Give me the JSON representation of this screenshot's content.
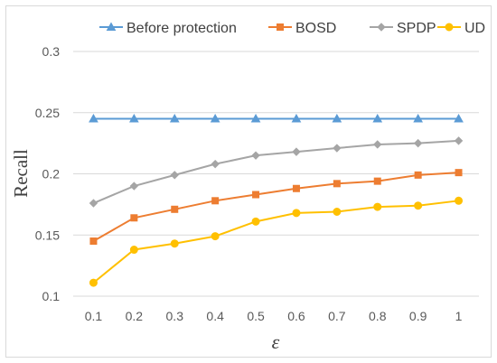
{
  "chart_data": {
    "type": "line",
    "x": [
      "0.1",
      "0.2",
      "0.3",
      "0.4",
      "0.5",
      "0.6",
      "0.7",
      "0.8",
      "0.9",
      "1"
    ],
    "series": [
      {
        "name": "Before protection",
        "color": "#5b9bd5",
        "marker": "triangle",
        "values": [
          0.245,
          0.245,
          0.245,
          0.245,
          0.245,
          0.245,
          0.245,
          0.245,
          0.245,
          0.245
        ]
      },
      {
        "name": "BOSD",
        "color": "#ed7d31",
        "marker": "square",
        "values": [
          0.145,
          0.164,
          0.171,
          0.178,
          0.183,
          0.188,
          0.192,
          0.194,
          0.199,
          0.201
        ]
      },
      {
        "name": "SPDP",
        "color": "#a5a5a5",
        "marker": "diamond",
        "values": [
          0.176,
          0.19,
          0.199,
          0.208,
          0.215,
          0.218,
          0.221,
          0.224,
          0.225,
          0.227
        ]
      },
      {
        "name": "UD",
        "color": "#ffc000",
        "marker": "circle",
        "values": [
          0.111,
          0.138,
          0.143,
          0.149,
          0.161,
          0.168,
          0.169,
          0.173,
          0.174,
          0.178
        ]
      }
    ],
    "xlabel": "ε",
    "ylabel": "Recall",
    "ylim": [
      0.1,
      0.3
    ],
    "yticks": [
      "0.1",
      "0.15",
      "0.2",
      "0.25",
      "0.3"
    ],
    "grid": true,
    "legend_position": "top"
  }
}
